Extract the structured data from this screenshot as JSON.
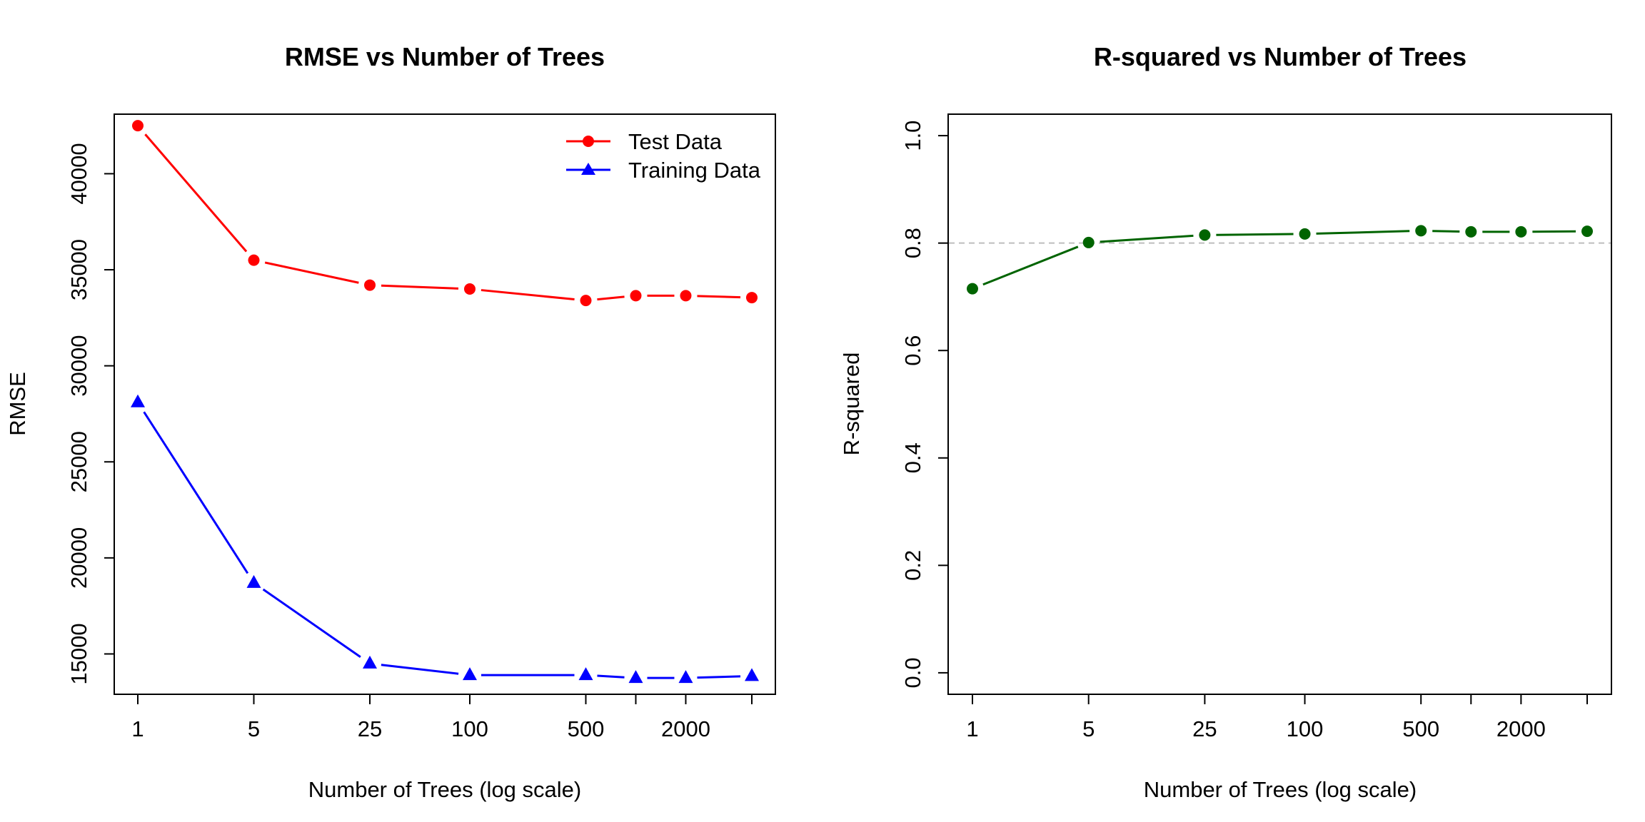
{
  "chart_data": [
    {
      "type": "line",
      "title": "RMSE vs Number of Trees",
      "xlabel": "Number of Trees (log scale)",
      "ylabel": "RMSE",
      "x_scale": "log",
      "x": [
        1,
        5,
        25,
        100,
        500,
        1000,
        2000,
        5000
      ],
      "x_tick_labels": [
        "1",
        "5",
        "25",
        "100",
        "500",
        "",
        "2000",
        ""
      ],
      "xlim": [
        1,
        5000
      ],
      "ylim": [
        12900,
        43100
      ],
      "y_ticks": [
        15000,
        20000,
        25000,
        30000,
        35000,
        40000
      ],
      "y_tick_labels": [
        "15000",
        "20000",
        "25000",
        "30000",
        "35000",
        "40000"
      ],
      "grid": false,
      "legend_position": "top-right",
      "series": [
        {
          "name": "Test Data",
          "color": "#ff0000",
          "marker": "circle",
          "values": [
            42500,
            35500,
            34200,
            34000,
            33400,
            33650,
            33650,
            33550
          ]
        },
        {
          "name": "Training Data",
          "color": "#0000ff",
          "marker": "triangle",
          "values": [
            28100,
            18700,
            14500,
            13900,
            13900,
            13750,
            13750,
            13850
          ]
        }
      ]
    },
    {
      "type": "line",
      "title": "R-squared vs Number of Trees",
      "xlabel": "Number of Trees (log scale)",
      "ylabel": "R-squared",
      "x_scale": "log",
      "x": [
        1,
        5,
        25,
        100,
        500,
        1000,
        2000,
        5000
      ],
      "x_tick_labels": [
        "1",
        "5",
        "25",
        "100",
        "500",
        "",
        "2000",
        ""
      ],
      "xlim": [
        1,
        5000
      ],
      "ylim": [
        -0.04,
        1.04
      ],
      "y_ticks": [
        0.0,
        0.2,
        0.4,
        0.6,
        0.8,
        1.0
      ],
      "y_tick_labels": [
        "0.0",
        "0.2",
        "0.4",
        "0.6",
        "0.8",
        "1.0"
      ],
      "grid": false,
      "reference_line": {
        "y": 0.8,
        "style": "dashed",
        "color": "#bebebe"
      },
      "series": [
        {
          "color": "#006400",
          "marker": "circle",
          "values": [
            0.715,
            0.801,
            0.815,
            0.817,
            0.823,
            0.821,
            0.821,
            0.822
          ]
        }
      ]
    }
  ]
}
